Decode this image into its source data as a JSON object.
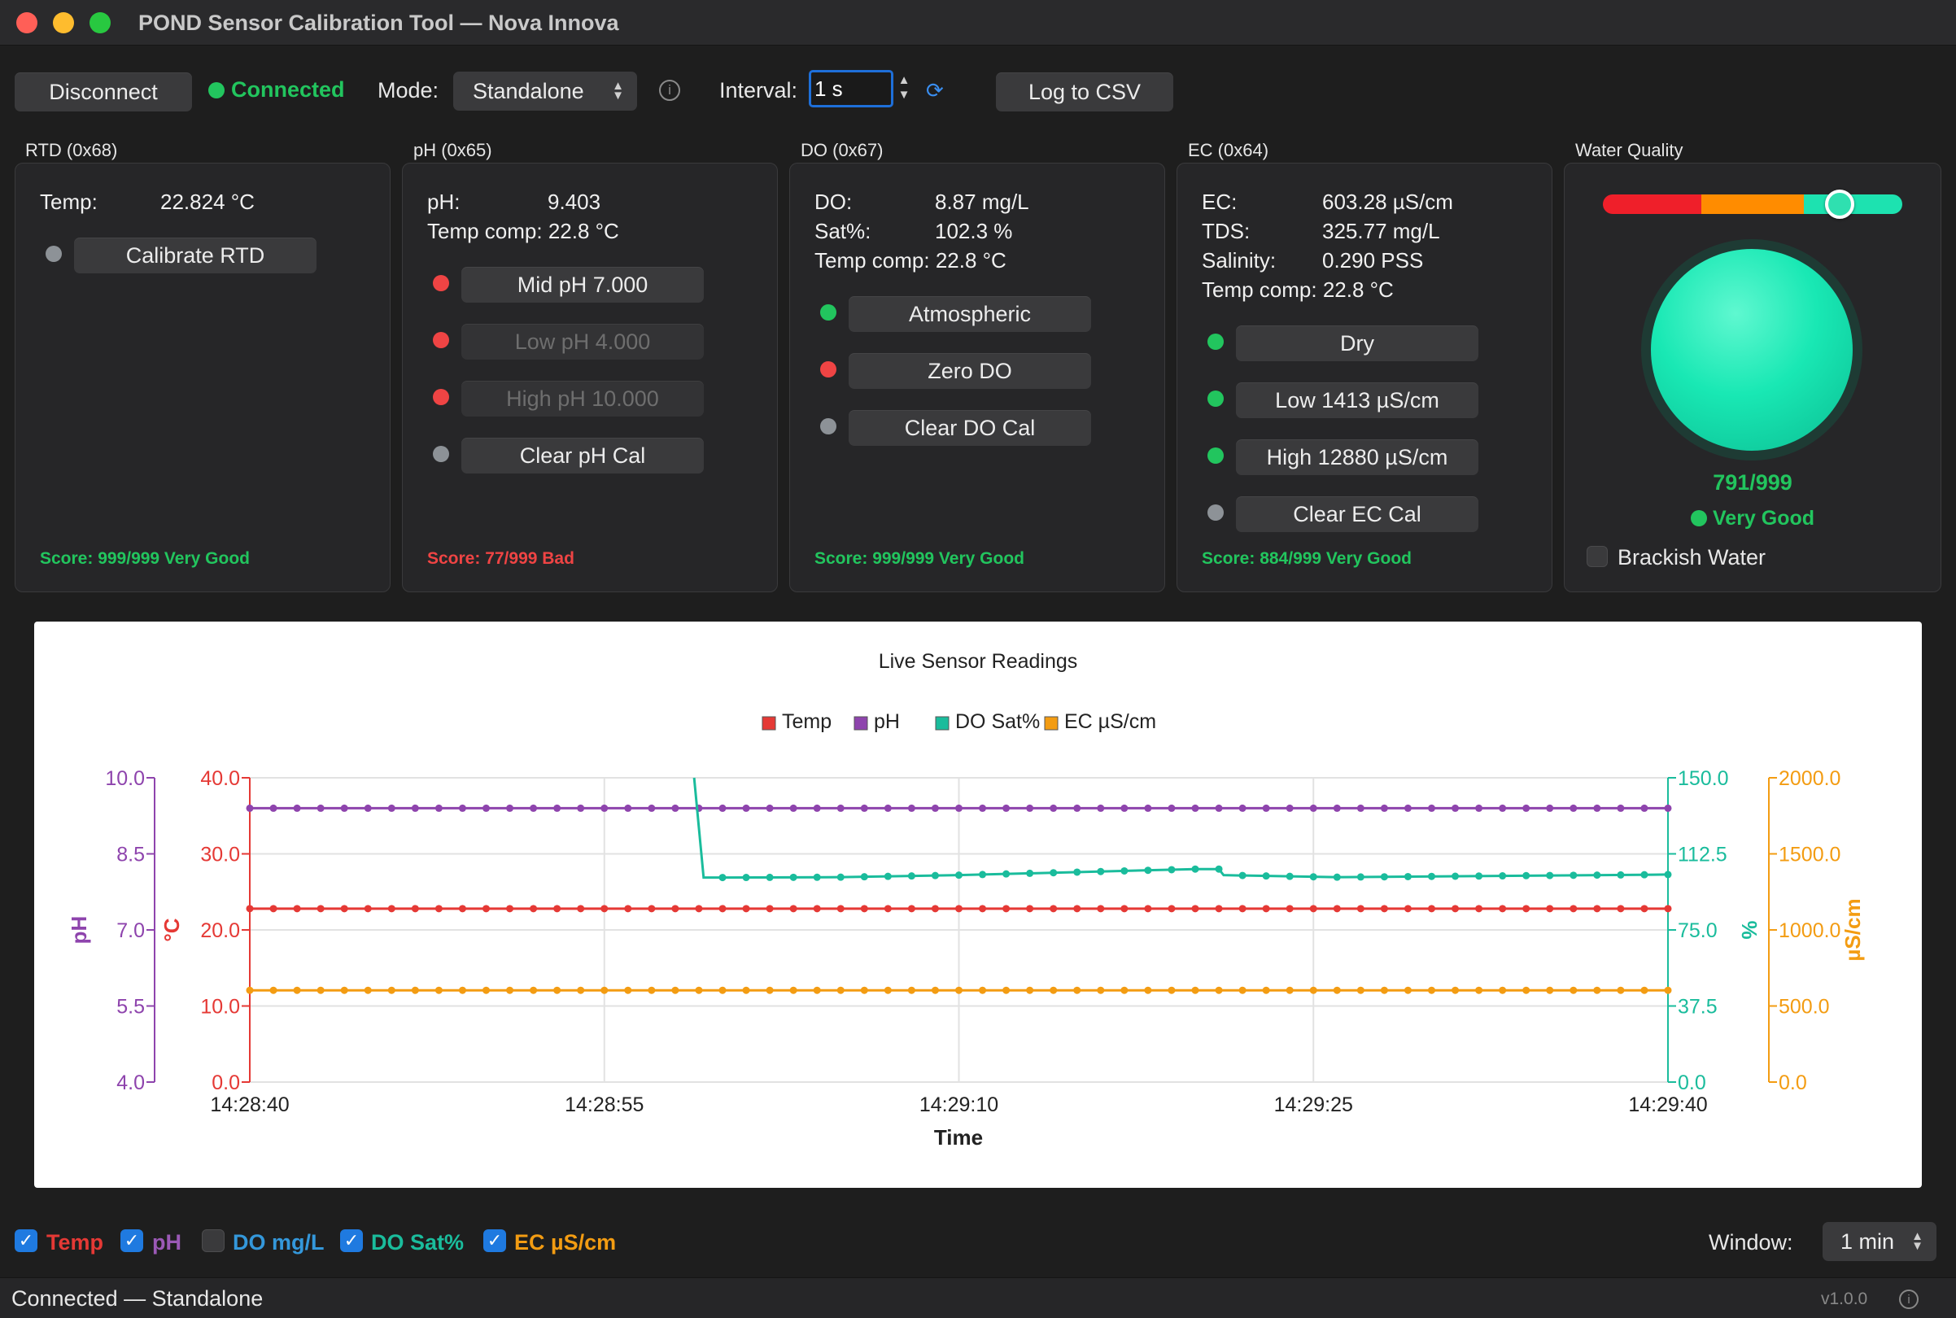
{
  "window": {
    "title": "POND Sensor Calibration Tool  —  Nova Innova"
  },
  "toolbar": {
    "disconnect_label": "Disconnect",
    "connection_status": "Connected",
    "mode_label": "Mode:",
    "mode_value": "Standalone",
    "interval_label": "Interval:",
    "interval_value": "1 s",
    "log_label": "Log to CSV"
  },
  "panels": {
    "rtd": {
      "title": "RTD  (0x68)",
      "temp_label": "Temp:",
      "temp_value": "22.824 °C",
      "cal_button": "Calibrate RTD",
      "score": "Score: 999/999  Very Good"
    },
    "ph": {
      "title": "pH  (0x65)",
      "ph_label": "pH:",
      "ph_value": "9.403",
      "temp_comp": "Temp comp: 22.8 °C",
      "buttons": [
        "Mid  pH 7.000",
        "Low  pH 4.000",
        "High pH 10.000",
        "Clear pH Cal"
      ],
      "score": "Score: 77/999  Bad"
    },
    "do": {
      "title": "DO  (0x67)",
      "do_label": "DO:",
      "do_value": "8.87 mg/L",
      "sat_label": "Sat%:",
      "sat_value": "102.3 %",
      "temp_comp": "Temp comp: 22.8 °C",
      "buttons": [
        "Atmospheric",
        "Zero DO",
        "Clear DO Cal"
      ],
      "score": "Score: 999/999  Very Good"
    },
    "ec": {
      "title": "EC  (0x64)",
      "ec_label": "EC:",
      "ec_value": "603.28 µS/cm",
      "tds_label": "TDS:",
      "tds_value": "325.77 mg/L",
      "sal_label": "Salinity:",
      "sal_value": "0.290 PSS",
      "temp_comp": "Temp comp: 22.8 °C",
      "buttons": [
        "Dry",
        "Low  1413 µS/cm",
        "High 12880 µS/cm",
        "Clear EC Cal"
      ],
      "score": "Score: 884/999  Very Good"
    },
    "water_quality": {
      "title": "Water Quality",
      "score": "791/999",
      "rating": "Very Good",
      "level": 0.79,
      "brackish_label": "Brackish Water",
      "brackish_checked": false
    }
  },
  "chart_data": {
    "type": "line",
    "title": "Live Sensor Readings",
    "xlabel": "Time",
    "x_ticks": [
      "14:28:40",
      "14:28:55",
      "14:29:10",
      "14:29:25",
      "14:29:40"
    ],
    "x_range_seconds": [
      0,
      60
    ],
    "axes": {
      "ph": {
        "label": "pH",
        "range": [
          4.0,
          10.0
        ],
        "ticks": [
          "4.0",
          "5.5",
          "7.0",
          "8.5",
          "10.0"
        ]
      },
      "temp": {
        "label": "°C",
        "range": [
          0,
          40
        ],
        "ticks": [
          "0.0",
          "10.0",
          "20.0",
          "30.0",
          "40.0"
        ]
      },
      "sat": {
        "label": "%",
        "range": [
          0,
          150
        ],
        "ticks": [
          "0.0",
          "37.5",
          "75.0",
          "112.5",
          "150.0"
        ]
      },
      "ec": {
        "label": "µS/cm",
        "range": [
          0,
          2000
        ],
        "ticks": [
          "0.0",
          "500.0",
          "1000.0",
          "1500.0",
          "2000.0"
        ]
      }
    },
    "grid": true,
    "legend_position": "top",
    "series": [
      {
        "name": "Temp",
        "color": "#e53935",
        "axis": "temp",
        "const": 22.8
      },
      {
        "name": "pH",
        "color": "#8e44ad",
        "axis": "ph",
        "const": 9.4
      },
      {
        "name": "DO Sat%",
        "color": "#1abc9c",
        "axis": "sat",
        "points": [
          [
            18.8,
            150
          ],
          [
            19.2,
            100.8
          ],
          [
            25,
            101
          ],
          [
            30,
            102
          ],
          [
            40,
            105
          ],
          [
            41,
            105
          ],
          [
            41.2,
            102
          ],
          [
            45.9,
            101
          ],
          [
            60,
            102.3
          ]
        ]
      },
      {
        "name": "EC µS/cm",
        "color": "#f39c12",
        "axis": "ec",
        "const": 603
      }
    ]
  },
  "series_toggles": [
    {
      "label": "Temp",
      "checked": true,
      "color": "#e53935"
    },
    {
      "label": "pH",
      "checked": true,
      "color": "#9b59b6"
    },
    {
      "label": "DO mg/L",
      "checked": false,
      "color": "#3498db"
    },
    {
      "label": "DO Sat%",
      "checked": true,
      "color": "#1abc9c"
    },
    {
      "label": "EC µS/cm",
      "checked": true,
      "color": "#f39c12"
    }
  ],
  "window_select": {
    "label": "Window:",
    "value": "1 min"
  },
  "statusbar": {
    "text": "Connected  —  Standalone",
    "version": "v1.0.0"
  }
}
